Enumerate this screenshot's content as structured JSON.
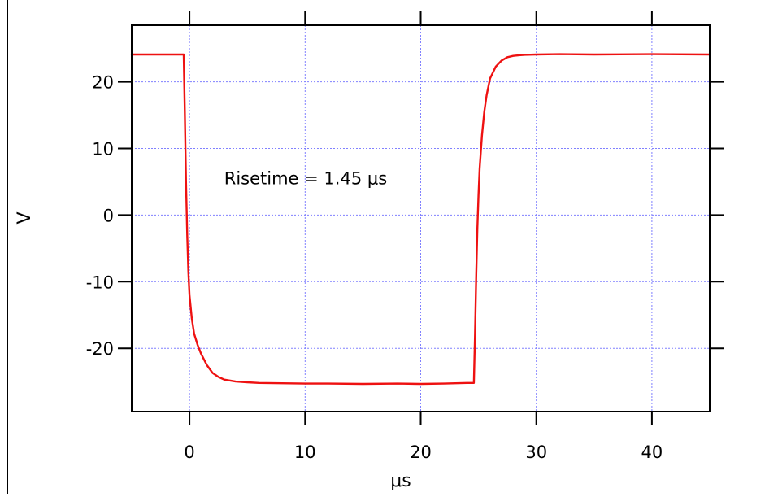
{
  "chart_data": {
    "type": "line",
    "title": "",
    "xlabel": "μs",
    "ylabel": "V",
    "xlim": [
      -5,
      45
    ],
    "ylim": [
      -29.5,
      28.5
    ],
    "xticks": [
      0,
      10,
      20,
      30,
      40
    ],
    "yticks": [
      -20,
      -10,
      0,
      10,
      20
    ],
    "xtick_labels": [
      "0",
      "10",
      "20",
      "30",
      "40"
    ],
    "ytick_labels": [
      "-20",
      "-10",
      "0",
      "10",
      "20"
    ],
    "grid": true,
    "grid_color": "#8080ff",
    "line_color": "#ee1111",
    "annotations": [
      {
        "text": "Risetime = 1.45 μs",
        "x": 3,
        "y": 4.6
      }
    ],
    "series": [
      {
        "x": [
          -5,
          -0.5,
          -0.4,
          -0.3,
          -0.2,
          -0.1,
          0,
          0.2,
          0.4,
          0.7,
          1.0,
          1.5,
          2.0,
          2.5,
          3.0,
          4.0,
          5.0,
          6.0,
          8.0,
          10.0,
          12.0,
          15.0,
          18.0,
          20.0,
          22.0,
          24.0,
          24.6,
          24.7,
          24.8,
          24.9,
          25.0,
          25.1,
          25.3,
          25.5,
          25.7,
          26.0,
          26.5,
          27.0,
          27.5,
          28.0,
          28.5,
          29.0,
          30.0,
          32.0,
          35.0,
          40.0,
          45.0
        ],
        "y": [
          24.1,
          24.1,
          15.0,
          5.0,
          -3.0,
          -8.5,
          -12.0,
          -15.5,
          -17.8,
          -19.5,
          -20.8,
          -22.5,
          -23.7,
          -24.3,
          -24.7,
          -25.0,
          -25.1,
          -25.2,
          -25.25,
          -25.3,
          -25.3,
          -25.35,
          -25.3,
          -25.35,
          -25.3,
          -25.2,
          -25.2,
          -18.0,
          -9.0,
          -2.0,
          3.0,
          7.0,
          12.0,
          15.5,
          18.0,
          20.5,
          22.3,
          23.2,
          23.7,
          23.9,
          24.0,
          24.05,
          24.1,
          24.15,
          24.1,
          24.15,
          24.1
        ]
      }
    ]
  }
}
